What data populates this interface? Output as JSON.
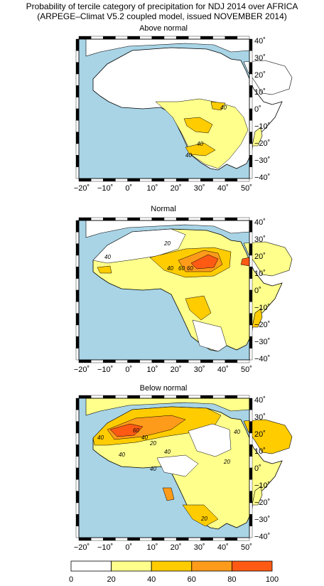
{
  "title": {
    "line1": "Probability of tercile category of precipitation for NDJ 2014 over AFRICA",
    "line2": "(ARPEGE–Climat V5.2 coupled model, issued NOVEMBER 2014)"
  },
  "panels": [
    {
      "title": "Above normal"
    },
    {
      "title": "Normal"
    },
    {
      "title": "Below normal"
    }
  ],
  "x_ticks": [
    "−20˚",
    "−10˚",
    "0˚",
    "10˚",
    "20˚",
    "30˚",
    "40˚",
    "50˚"
  ],
  "y_ticks": [
    "40˚",
    "30˚",
    "20˚",
    "10˚",
    "0˚",
    "−10˚",
    "−20˚",
    "−30˚",
    "−40˚"
  ],
  "colorbar": {
    "ticks": [
      "0",
      "20",
      "40",
      "60",
      "80",
      "100"
    ],
    "colors": [
      "#ffffff",
      "#ffff8c",
      "#ffcc00",
      "#ff9b1a",
      "#ff5a14"
    ]
  },
  "colors": {
    "ocean": "#a8d4e6",
    "land": "#ffffff"
  },
  "contour_labels": {
    "above": [
      "40",
      "40",
      "40"
    ],
    "normal": [
      "20",
      "40",
      "60",
      "60",
      "40"
    ],
    "below": [
      "40",
      "60",
      "40",
      "20",
      "40",
      "40",
      "20",
      "40",
      "40",
      "20"
    ]
  }
}
